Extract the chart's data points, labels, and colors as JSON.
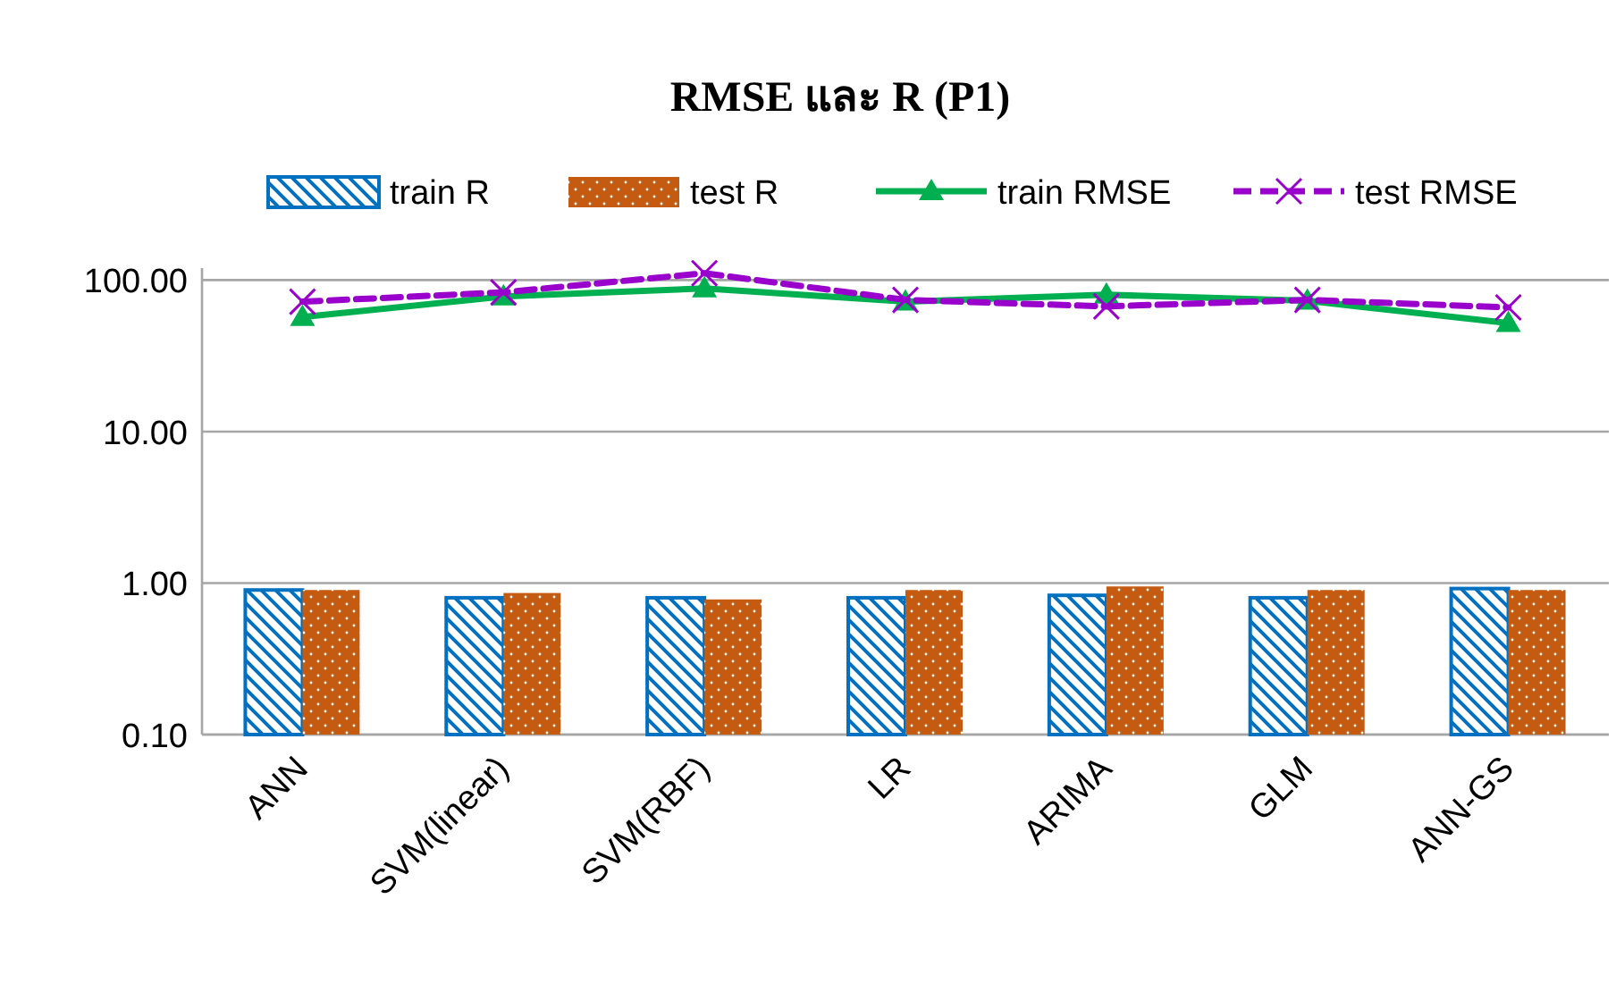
{
  "chart_data": {
    "type": "bar",
    "title": "RMSE และ R (P1)",
    "categories": [
      "ANN",
      "SVM(linear)",
      "SVM(RBF)",
      "LR",
      "ARIMA",
      "GLM",
      "ANN-GS"
    ],
    "series": [
      {
        "name": "train R",
        "color": "#0070c0",
        "values": [
          0.9,
          0.8,
          0.8,
          0.8,
          0.83,
          0.8,
          0.92
        ]
      },
      {
        "name": "test R",
        "color": "#c55a11",
        "values": [
          0.9,
          0.86,
          0.78,
          0.9,
          0.95,
          0.9,
          0.9
        ]
      },
      {
        "name": "train RMSE",
        "type": "line",
        "color": "#00b050",
        "marker": "triangle",
        "line_style": "solid",
        "values": [
          57,
          78,
          88,
          72,
          80,
          73,
          52
        ]
      },
      {
        "name": "test RMSE",
        "type": "line",
        "color": "#9900cc",
        "marker": "cross",
        "line_style": "dashed",
        "values": [
          72,
          83,
          111,
          74,
          67,
          74,
          66
        ]
      }
    ],
    "log": "y",
    "ylim": [
      0.1,
      120
    ],
    "yticks": [
      {
        "value": 0.1,
        "label": "0.10"
      },
      {
        "value": 1,
        "label": "1.00"
      },
      {
        "value": 10,
        "label": "10.00"
      },
      {
        "value": 100,
        "label": "100.00"
      }
    ],
    "grid": "y",
    "legend": "top"
  }
}
